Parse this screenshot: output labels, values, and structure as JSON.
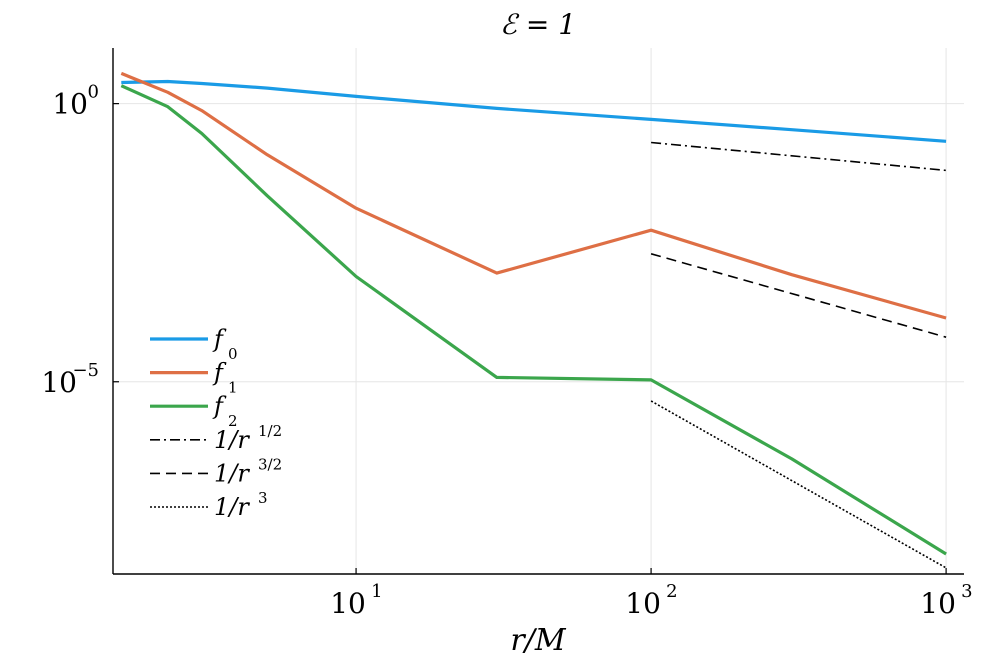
{
  "chart_data": {
    "type": "line",
    "title": "ℰ = 1",
    "xlabel": "r/M",
    "ylabel": "",
    "x_scale": "log10",
    "y_scale": "log10",
    "xlim": [
      1.5,
      1150
    ],
    "ylim": [
      3.5e-09,
      10
    ],
    "grid": true,
    "legend_position": "bottom-left",
    "x_ticks": [
      {
        "value": 10,
        "base": "10",
        "exp": "1"
      },
      {
        "value": 100,
        "base": "10",
        "exp": "2"
      },
      {
        "value": 1000,
        "base": "10",
        "exp": "3"
      }
    ],
    "y_ticks": [
      {
        "value": 1,
        "base": "10",
        "exp": "0"
      },
      {
        "value": 1e-05,
        "base": "10",
        "exp": "−5"
      }
    ],
    "series": [
      {
        "name": "f0",
        "label_main": "f",
        "label_sub": "0",
        "color": "#1a9be6",
        "dash": "",
        "width": 3.2,
        "points": [
          [
            1.6,
            2.4
          ],
          [
            2.3,
            2.5
          ],
          [
            3,
            2.3
          ],
          [
            5,
            1.9
          ],
          [
            10,
            1.35
          ],
          [
            30,
            0.82
          ],
          [
            100,
            0.52
          ],
          [
            300,
            0.34
          ],
          [
            1000,
            0.21
          ]
        ]
      },
      {
        "name": "f1",
        "label_main": "f",
        "label_sub": "1",
        "color": "#de6f45",
        "dash": "",
        "width": 3.2,
        "points": [
          [
            1.6,
            3.5
          ],
          [
            2.3,
            1.6
          ],
          [
            3,
            0.75
          ],
          [
            5,
            0.12
          ],
          [
            10,
            0.0132
          ],
          [
            30,
            0.0009
          ],
          [
            100,
            0.0053
          ],
          [
            300,
            0.00084
          ],
          [
            1000,
            0.00014
          ]
        ]
      },
      {
        "name": "f2",
        "label_main": "f",
        "label_sub": "2",
        "color": "#3ba64c",
        "dash": "",
        "width": 3.2,
        "points": [
          [
            1.6,
            2.1
          ],
          [
            2.3,
            0.88
          ],
          [
            3,
            0.29
          ],
          [
            5,
            0.022
          ],
          [
            10,
            0.00078
          ],
          [
            30,
            1.2e-05
          ],
          [
            100,
            1.08e-05
          ],
          [
            300,
            4.1e-07
          ],
          [
            1000,
            8e-09
          ]
        ]
      },
      {
        "name": "1/r^{1/2}",
        "label_main": "1/r",
        "label_sup": "1/2",
        "color": "#000000",
        "dash": "10 4 2 4",
        "width": 1.6,
        "points": [
          [
            100,
            0.2
          ],
          [
            1000,
            0.063
          ]
        ]
      },
      {
        "name": "1/r^{3/2}",
        "label_main": "1/r",
        "label_sup": "3/2",
        "color": "#000000",
        "dash": "10 6",
        "width": 1.6,
        "points": [
          [
            100,
            0.002
          ],
          [
            1000,
            6.32e-05
          ]
        ]
      },
      {
        "name": "1/r^3",
        "label_main": "1/r",
        "label_sup": "3",
        "color": "#000000",
        "dash": "2 2",
        "width": 1.6,
        "points": [
          [
            100,
            4.5e-06
          ],
          [
            1000,
            4.5e-09
          ]
        ]
      }
    ]
  }
}
